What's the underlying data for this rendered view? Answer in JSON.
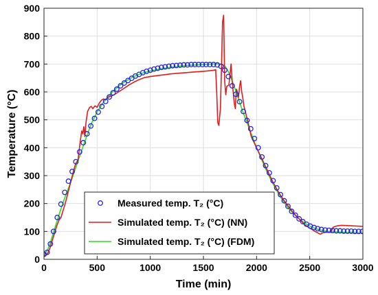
{
  "chart_data": {
    "type": "line",
    "xlabel": "Time (min)",
    "ylabel": "Temperature (°C)",
    "xlim": [
      0,
      3000
    ],
    "ylim": [
      0,
      900
    ],
    "xticks": [
      0,
      500,
      1000,
      1500,
      2000,
      2500,
      3000
    ],
    "yticks": [
      0,
      100,
      200,
      300,
      400,
      500,
      600,
      700,
      800,
      900
    ],
    "grid": true,
    "legend_position": "bottom-center",
    "series": [
      {
        "name": "Measured temp. T₂ (°C)",
        "style": "marker-circle",
        "color": "#2323e6",
        "x": [
          0,
          30,
          60,
          90,
          125,
          160,
          195,
          230,
          265,
          300,
          335,
          370,
          405,
          440,
          475,
          510,
          545,
          580,
          615,
          650,
          685,
          720,
          755,
          790,
          825,
          860,
          895,
          930,
          965,
          1000,
          1035,
          1070,
          1105,
          1140,
          1175,
          1210,
          1245,
          1280,
          1315,
          1350,
          1385,
          1420,
          1455,
          1490,
          1525,
          1560,
          1595,
          1630,
          1665,
          1700,
          1735,
          1770,
          1805,
          1840,
          1875,
          1910,
          1945,
          1980,
          2015,
          2050,
          2085,
          2120,
          2155,
          2190,
          2225,
          2260,
          2295,
          2330,
          2365,
          2400,
          2435,
          2470,
          2505,
          2540,
          2575,
          2610,
          2645,
          2680,
          2715,
          2750,
          2785,
          2820,
          2855,
          2890,
          2925,
          2960,
          2995
        ],
        "y": [
          18,
          25,
          55,
          100,
          150,
          198,
          240,
          280,
          315,
          350,
          385,
          418,
          450,
          478,
          505,
          528,
          548,
          566,
          582,
          597,
          610,
          622,
          632,
          641,
          649,
          657,
          663,
          669,
          674,
          678,
          682,
          685,
          688,
          690,
          692,
          694,
          695,
          696,
          697,
          697,
          698,
          698,
          698,
          698,
          698,
          698,
          698,
          697,
          692,
          678,
          655,
          622,
          592,
          565,
          530,
          498,
          468,
          433,
          400,
          367,
          336,
          310,
          282,
          256,
          232,
          210,
          190,
          172,
          158,
          145,
          135,
          126,
          119,
          114,
          110,
          107,
          105,
          104,
          103,
          102,
          102,
          101,
          101,
          101,
          100,
          100,
          100
        ]
      },
      {
        "name": "Simulated temp. T₂ (°C) (NN)",
        "style": "line",
        "color": "#e21a1a",
        "x": [
          0,
          20,
          40,
          60,
          80,
          100,
          120,
          140,
          160,
          180,
          200,
          220,
          240,
          260,
          280,
          300,
          320,
          340,
          355,
          365,
          375,
          385,
          395,
          410,
          430,
          445,
          460,
          480,
          500,
          520,
          540,
          560,
          580,
          600,
          630,
          660,
          700,
          750,
          800,
          850,
          900,
          950,
          1000,
          1100,
          1200,
          1300,
          1400,
          1500,
          1560,
          1600,
          1615,
          1625,
          1635,
          1645,
          1660,
          1670,
          1680,
          1690,
          1700,
          1710,
          1720,
          1740,
          1760,
          1770,
          1780,
          1790,
          1800,
          1810,
          1820,
          1830,
          1840,
          1850,
          1860,
          1870,
          1880,
          1900,
          1920,
          1950,
          2000,
          2050,
          2100,
          2150,
          2200,
          2250,
          2300,
          2350,
          2400,
          2450,
          2500,
          2550,
          2600,
          2620,
          2650,
          2680,
          2700,
          2720,
          2740,
          2760,
          2800,
          2850,
          2900,
          2950,
          3000
        ],
        "y": [
          12,
          15,
          25,
          45,
          70,
          95,
          120,
          140,
          150,
          175,
          200,
          230,
          260,
          290,
          320,
          345,
          355,
          420,
          460,
          450,
          475,
          440,
          490,
          530,
          545,
          548,
          540,
          550,
          545,
          560,
          570,
          575,
          572,
          580,
          585,
          590,
          600,
          612,
          625,
          636,
          645,
          652,
          655,
          660,
          665,
          668,
          671,
          674,
          676,
          678,
          680,
          600,
          490,
          480,
          540,
          690,
          850,
          875,
          640,
          590,
          620,
          625,
          700,
          640,
          600,
          560,
          540,
          610,
          600,
          580,
          620,
          640,
          600,
          580,
          550,
          520,
          490,
          440,
          400,
          360,
          320,
          280,
          245,
          215,
          190,
          165,
          145,
          125,
          112,
          100,
          90,
          95,
          97,
          97,
          97,
          115,
          118,
          120,
          122,
          121,
          120,
          119,
          118
        ]
      },
      {
        "name": "Simulated temp. T₂ (°C) (FDM)",
        "style": "line",
        "color": "#27e01c",
        "x": [
          0,
          30,
          60,
          100,
          150,
          200,
          250,
          300,
          350,
          400,
          450,
          500,
          550,
          600,
          650,
          700,
          750,
          800,
          850,
          900,
          950,
          1000,
          1050,
          1100,
          1150,
          1200,
          1250,
          1300,
          1350,
          1400,
          1450,
          1500,
          1550,
          1600,
          1650,
          1680,
          1700,
          1725,
          1750,
          1775,
          1800,
          1825,
          1850,
          1875,
          1900,
          1925,
          1950,
          1975,
          2000,
          2050,
          2100,
          2150,
          2200,
          2250,
          2300,
          2350,
          2400,
          2450,
          2500,
          2550,
          2600,
          2650,
          2700,
          2750,
          2800,
          2850,
          2900,
          2950,
          3000
        ],
        "y": [
          15,
          30,
          60,
          110,
          170,
          225,
          275,
          330,
          385,
          440,
          490,
          528,
          558,
          582,
          602,
          620,
          634,
          646,
          656,
          664,
          670,
          675,
          679,
          683,
          686,
          689,
          691,
          693,
          695,
          696,
          697,
          698,
          699,
          700,
          700,
          698,
          694,
          680,
          660,
          635,
          608,
          580,
          552,
          525,
          500,
          475,
          450,
          425,
          400,
          355,
          312,
          274,
          239,
          209,
          183,
          162,
          145,
          131,
          119,
          111,
          105,
          101,
          99,
          98,
          97,
          96,
          96,
          95,
          95
        ]
      }
    ]
  }
}
